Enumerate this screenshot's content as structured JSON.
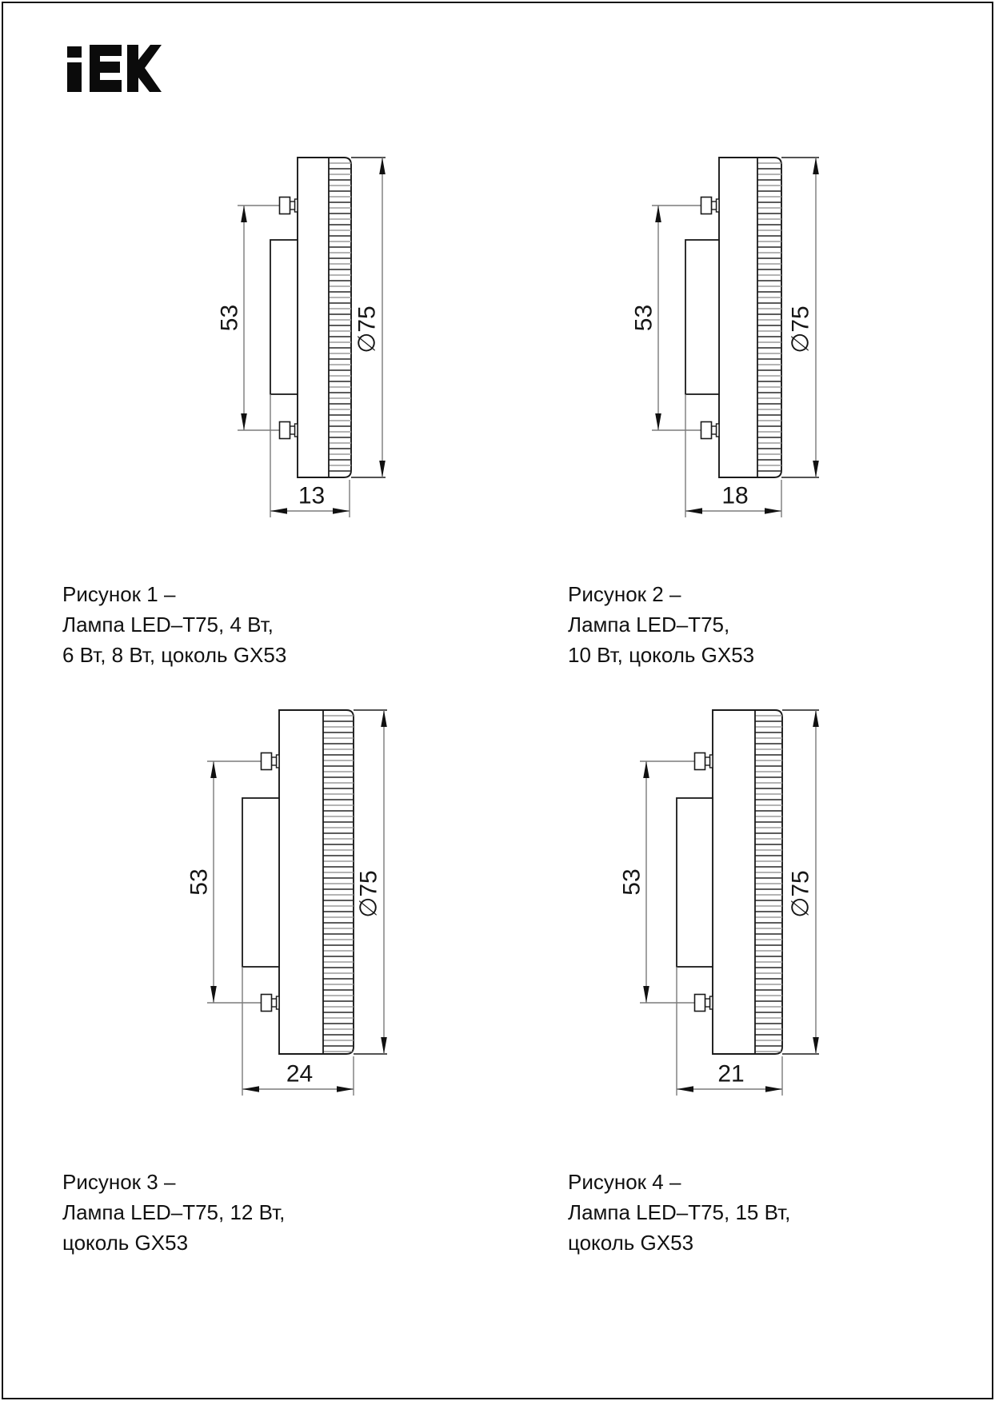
{
  "logo": {
    "name": "IEK"
  },
  "figures": [
    {
      "caption": [
        "Рисунок 1 –",
        "Лампа LED–T75, 4 Вт,",
        "6 Вт, 8 Вт, цоколь GX53"
      ],
      "labels": {
        "pin_spacing": "53",
        "diameter": "∅75",
        "depth": "13"
      }
    },
    {
      "caption": [
        "Рисунок 2 –",
        "Лампа LED–T75,",
        "10 Вт, цоколь GX53"
      ],
      "labels": {
        "pin_spacing": "53",
        "diameter": "∅75",
        "depth": "18"
      }
    },
    {
      "caption": [
        "Рисунок 3 –",
        "Лампа LED–T75, 12 Вт,",
        "цоколь GX53"
      ],
      "labels": {
        "pin_spacing": "53",
        "diameter": "∅75",
        "depth": "24"
      }
    },
    {
      "caption": [
        "Рисунок 4 –",
        "Лампа LED–T75, 15 Вт,",
        "цоколь GX53"
      ],
      "labels": {
        "pin_spacing": "53",
        "diameter": "∅75",
        "depth": "21"
      }
    }
  ]
}
